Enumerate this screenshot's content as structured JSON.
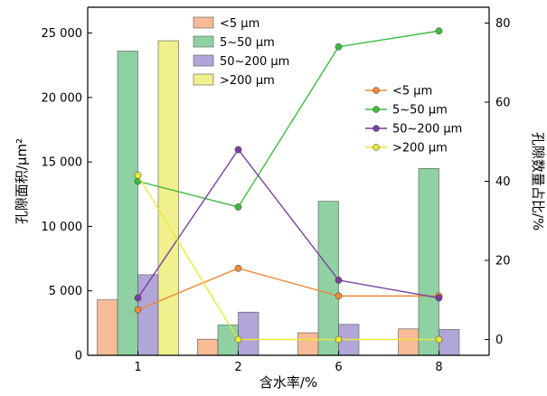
{
  "chart_data": {
    "type": "bar",
    "categories": [
      "1",
      "2",
      "6",
      "8"
    ],
    "xlabel": "含水率/%",
    "ylabel_left": "孔隙面积/μm²",
    "ylabel_right": "孔隙数量占比/%",
    "ylim_left": [
      0,
      27000
    ],
    "ylim_right": [
      -4,
      84
    ],
    "yticks_left": [
      0,
      5000,
      10000,
      15000,
      20000,
      25000
    ],
    "yticks_left_labels": [
      "0",
      "5 000",
      "10 000",
      "15 000",
      "20 000",
      "25 000"
    ],
    "yticks_right": [
      0,
      20,
      40,
      60,
      80
    ],
    "yticks_right_labels": [
      "0",
      "20",
      "40",
      "60",
      "80"
    ],
    "bar_series": [
      {
        "name": "<5 μm",
        "color": "#f7bc96",
        "values": [
          4300,
          1250,
          1750,
          2050
        ]
      },
      {
        "name": "5~50 μm",
        "color": "#8fd1a3",
        "values": [
          23600,
          2350,
          11950,
          14500
        ]
      },
      {
        "name": "50~200 μm",
        "color": "#b2a5d8",
        "values": [
          6250,
          3350,
          2400,
          2000
        ]
      },
      {
        "name": ">200 μm",
        "color": "#f0f08e",
        "values": [
          24400,
          0,
          0,
          0
        ]
      }
    ],
    "line_series": [
      {
        "name": "<5 μm",
        "color": "#f0883a",
        "values": [
          7.5,
          18,
          11,
          11
        ]
      },
      {
        "name": "5~50 μm",
        "color": "#3ebb3e",
        "values": [
          40,
          33.5,
          74,
          78
        ]
      },
      {
        "name": "50~200 μm",
        "color": "#7b3fa0",
        "values": [
          10.5,
          48,
          15,
          10.5
        ]
      },
      {
        "name": ">200 μm",
        "color": "#e8e83a",
        "values": [
          41.5,
          0,
          0,
          0
        ]
      }
    ],
    "bar_legend_position": "top-center",
    "line_legend_position": "right"
  }
}
